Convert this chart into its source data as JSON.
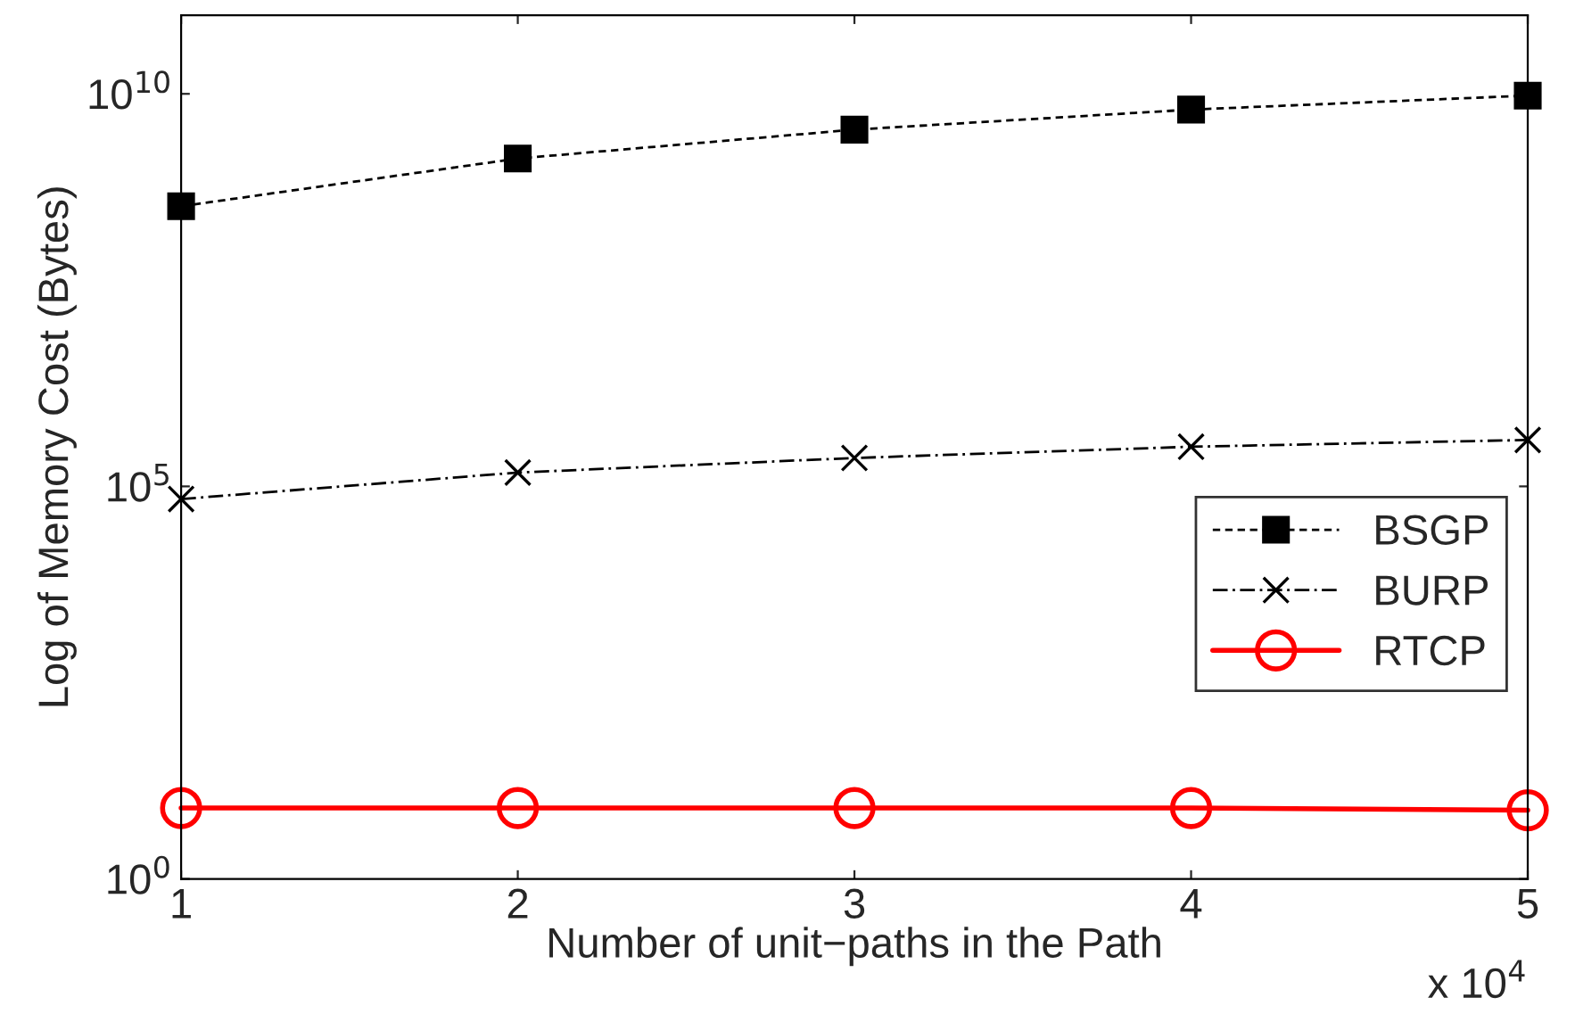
{
  "chart_data": {
    "type": "line",
    "xlabel": "Number of unit−paths in the Path",
    "ylabel": "Log of Memory Cost (Bytes)",
    "x": [
      1,
      2,
      3,
      4,
      5
    ],
    "series": [
      {
        "name": "BSGP",
        "color": "#000000",
        "marker": "square",
        "line_style": "dashed",
        "values": [
          370000000,
          1500000000,
          3500000000,
          6300000000,
          9500000000
        ]
      },
      {
        "name": "BURP",
        "color": "#000000",
        "marker": "cross",
        "line_style": "dashdot",
        "values": [
          69000,
          150000,
          230000,
          320000,
          390000
        ]
      },
      {
        "name": "RTCP",
        "color": "#ff0000",
        "marker": "circle",
        "line_style": "solid",
        "values": [
          8,
          8,
          8,
          8,
          7.5
        ]
      }
    ],
    "log": "y",
    "xlim": [
      1,
      5
    ],
    "ylim": [
      1,
      100000000000
    ],
    "xticks": [
      1,
      2,
      3,
      4,
      5
    ],
    "yticks": [
      {
        "value": 1,
        "label": "10$^{0}$"
      },
      {
        "value": 100000,
        "label": "10$^{5}$"
      },
      {
        "value": 10000000000,
        "label": "10$^{10}$"
      }
    ],
    "annotations": [
      "x 10$^{4}$"
    ],
    "grid": false,
    "legend": "right"
  }
}
